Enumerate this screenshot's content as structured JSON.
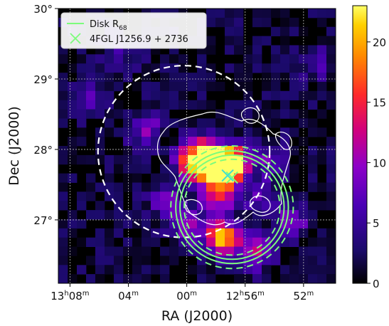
{
  "chart_data": {
    "type": "heatmap",
    "title": "",
    "xlabel": "RA (J2000)",
    "ylabel": "Dec (J2000)",
    "x_ticks": [
      {
        "ra_min": 788,
        "label": "13h08m",
        "h": "13",
        "m": "08"
      },
      {
        "ra_min": 784,
        "label": "04m",
        "m": "04"
      },
      {
        "ra_min": 780,
        "label": "00m",
        "m": "00"
      },
      {
        "ra_min": 776,
        "label": "12h56m",
        "h": "12",
        "m": "56"
      },
      {
        "ra_min": 772,
        "label": "52m",
        "m": "52"
      }
    ],
    "xlim_ra_min": [
      788.8,
      769.8
    ],
    "y_ticks": [
      {
        "dec": 30,
        "label": "30°"
      },
      {
        "dec": 29,
        "label": "29°"
      },
      {
        "dec": 28,
        "label": "28°"
      },
      {
        "dec": 27,
        "label": "27°"
      }
    ],
    "ylim_dec": [
      26.1,
      30.0
    ],
    "colorbar": {
      "min": 0,
      "max": 23,
      "ticks": [
        0,
        5,
        10,
        15,
        20
      ],
      "tick_labels": [
        "0",
        "5",
        "10",
        "15",
        "20"
      ],
      "colormap": "plasma-hot"
    },
    "legend": {
      "placement": "top-left",
      "entries": [
        {
          "label": "Disk R",
          "sub": "68",
          "marker": "line",
          "color": "#7CFC7C"
        },
        {
          "label": "4FGL J1256.9 + 2736",
          "marker": "x",
          "color": "#7CFC7C"
        }
      ]
    },
    "sources": [
      {
        "label": "4FGL J1256.9 + 2736",
        "ra_min": 776.9,
        "dec": 27.6,
        "marker": "x",
        "color": "#7CFC7C"
      },
      {
        "name": "cyan-x",
        "ra_min": 777.2,
        "dec": 27.63,
        "marker": "x",
        "color": "#40E0D0"
      }
    ],
    "circles": [
      {
        "name": "white-dashed",
        "ra_center": 780.2,
        "dec_center": 27.97,
        "radius_deg": 1.22,
        "style": "dashed",
        "color": "#ffffff"
      },
      {
        "name": "disk-r68-inner",
        "ra_center": 776.9,
        "dec_center": 27.18,
        "radius_deg": 0.74,
        "style": "solid",
        "color": "#7CFC7C"
      },
      {
        "name": "disk-r68-outer",
        "ra_center": 776.9,
        "dec_center": 27.18,
        "radius_deg": 0.8,
        "style": "solid",
        "color": "#7CFC7C"
      },
      {
        "name": "disk-r68-dashed-inner",
        "ra_center": 776.9,
        "dec_center": 27.18,
        "radius_deg": 0.68,
        "style": "dashed",
        "color": "#7CFC7C"
      },
      {
        "name": "disk-r68-dashed-outer",
        "ra_center": 776.9,
        "dec_center": 27.18,
        "radius_deg": 0.87,
        "style": "dashed",
        "color": "#7CFC7C"
      }
    ],
    "hotspots": [
      {
        "ra_min": 777.6,
        "dec": 27.75,
        "peak": 22
      },
      {
        "ra_min": 777.0,
        "dec": 27.78,
        "peak": 21
      },
      {
        "ra_min": 779.5,
        "dec": 27.8,
        "peak": 18
      },
      {
        "ra_min": 778.7,
        "dec": 27.92,
        "peak": 15
      },
      {
        "ra_min": 777.9,
        "dec": 27.35,
        "peak": 13
      },
      {
        "ra_min": 777.6,
        "dec": 26.75,
        "peak": 20
      },
      {
        "ra_min": 780.0,
        "dec": 26.9,
        "peak": 9
      },
      {
        "ra_min": 775.3,
        "dec": 26.55,
        "peak": 11
      },
      {
        "ra_min": 775.0,
        "dec": 27.3,
        "peak": 6
      },
      {
        "ra_min": 782.8,
        "dec": 28.3,
        "peak": 8
      },
      {
        "ra_min": 774.2,
        "dec": 27.85,
        "peak": 7
      },
      {
        "ra_min": 781.5,
        "dec": 27.3,
        "peak": 7
      },
      {
        "ra_min": 772.8,
        "dec": 27.0,
        "peak": 8
      },
      {
        "ra_min": 786.5,
        "dec": 28.7,
        "peak": 5
      },
      {
        "ra_min": 784.5,
        "dec": 29.4,
        "peak": 5
      },
      {
        "ra_min": 771.0,
        "dec": 29.2,
        "peak": 5
      }
    ]
  }
}
